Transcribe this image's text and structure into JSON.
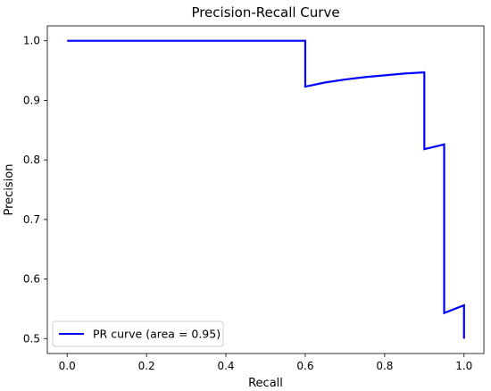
{
  "chart_data": {
    "type": "line",
    "title": "Precision-Recall Curve",
    "xlabel": "Recall",
    "ylabel": "Precision",
    "xlim": [
      -0.05,
      1.05
    ],
    "ylim": [
      0.475,
      1.025
    ],
    "xticks": [
      0.0,
      0.2,
      0.4,
      0.6,
      0.8,
      1.0
    ],
    "xtick_labels": [
      "0.0",
      "0.2",
      "0.4",
      "0.6",
      "0.8",
      "1.0"
    ],
    "yticks": [
      0.5,
      0.6,
      0.7,
      0.8,
      0.9,
      1.0
    ],
    "ytick_labels": [
      "0.5",
      "0.6",
      "0.7",
      "0.8",
      "0.9",
      "1.0"
    ],
    "grid": false,
    "legend_position": "lower-left",
    "series": [
      {
        "name": "PR curve (area = 0.95)",
        "color": "#0000ff",
        "x": [
          0.0,
          0.6,
          0.6,
          0.65,
          0.7,
          0.75,
          0.8,
          0.85,
          0.9,
          0.9,
          0.95,
          0.95,
          1.0,
          1.0
        ],
        "y": [
          1.0,
          1.0,
          0.923,
          0.93,
          0.935,
          0.939,
          0.942,
          0.945,
          0.947,
          0.818,
          0.826,
          0.543,
          0.556,
          0.5
        ]
      }
    ]
  }
}
